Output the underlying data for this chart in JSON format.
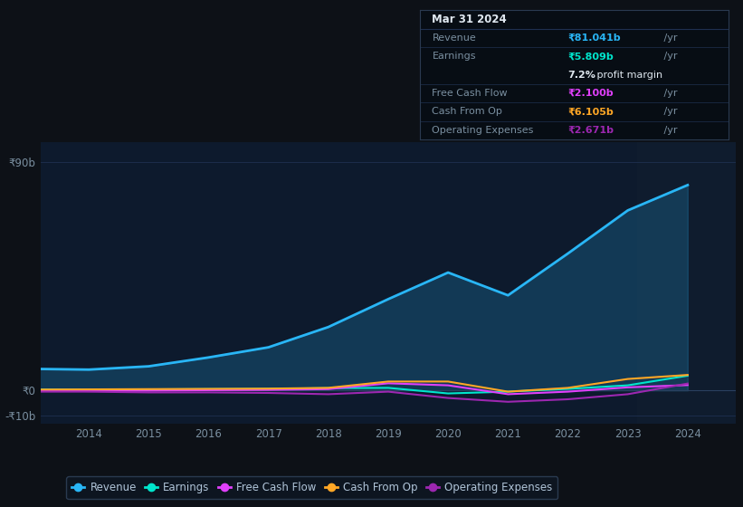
{
  "bg_color": "#0d1117",
  "chart_bg": "#0d1a2d",
  "years": [
    2013,
    2014,
    2015,
    2016,
    2017,
    2018,
    2019,
    2020,
    2021,
    2022,
    2023,
    2024
  ],
  "revenue": [
    8.5,
    8.2,
    9.5,
    13.0,
    17.0,
    25.0,
    36.0,
    46.5,
    37.5,
    54.0,
    71.0,
    81.0
  ],
  "earnings": [
    0.4,
    0.3,
    0.4,
    0.5,
    0.6,
    0.9,
    1.0,
    -1.2,
    -0.5,
    0.6,
    2.0,
    5.8
  ],
  "free_cash_flow": [
    0.0,
    -0.3,
    -0.1,
    0.1,
    0.2,
    0.5,
    2.8,
    2.0,
    -1.5,
    -0.5,
    1.2,
    2.1
  ],
  "cash_from_op": [
    0.3,
    0.4,
    0.5,
    0.6,
    0.7,
    1.0,
    3.5,
    3.5,
    -0.5,
    1.0,
    4.5,
    6.1
  ],
  "op_expenses": [
    -0.5,
    -0.5,
    -0.8,
    -0.8,
    -1.0,
    -1.5,
    -0.5,
    -3.0,
    -4.5,
    -3.5,
    -1.5,
    2.7
  ],
  "revenue_color": "#29b6f6",
  "earnings_color": "#00e5cc",
  "fcf_color": "#e040fb",
  "cash_op_color": "#ffa726",
  "op_exp_color": "#9c27b0",
  "ylim_min": -13,
  "ylim_max": 98,
  "yticks": [
    -10,
    0,
    90
  ],
  "ytick_labels": [
    "-₹10b",
    "₹0",
    "₹90b"
  ],
  "xticks": [
    2014,
    2015,
    2016,
    2017,
    2018,
    2019,
    2020,
    2021,
    2022,
    2023,
    2024
  ],
  "grid_color": "#1e3050",
  "info_bg": "#070d14",
  "info_border": "#2a3a50",
  "tooltip_date": "Mar 31 2024",
  "tooltip_revenue_label": "Revenue",
  "tooltip_revenue_val": "₹81.041b",
  "tooltip_revenue_color": "#29b6f6",
  "tooltip_earnings_label": "Earnings",
  "tooltip_earnings_val": "₹5.809b",
  "tooltip_earnings_color": "#00e5cc",
  "tooltip_margin_pct": "7.2%",
  "tooltip_margin_rest": " profit margin",
  "tooltip_fcf_label": "Free Cash Flow",
  "tooltip_fcf_val": "₹2.100b",
  "tooltip_fcf_color": "#e040fb",
  "tooltip_cashop_label": "Cash From Op",
  "tooltip_cashop_val": "₹6.105b",
  "tooltip_cashop_color": "#ffa726",
  "tooltip_opexp_label": "Operating Expenses",
  "tooltip_opexp_val": "₹2.671b",
  "tooltip_opexp_color": "#9c27b0",
  "legend_items": [
    "Revenue",
    "Earnings",
    "Free Cash Flow",
    "Cash From Op",
    "Operating Expenses"
  ],
  "legend_colors": [
    "#29b6f6",
    "#00e5cc",
    "#e040fb",
    "#ffa726",
    "#9c27b0"
  ]
}
